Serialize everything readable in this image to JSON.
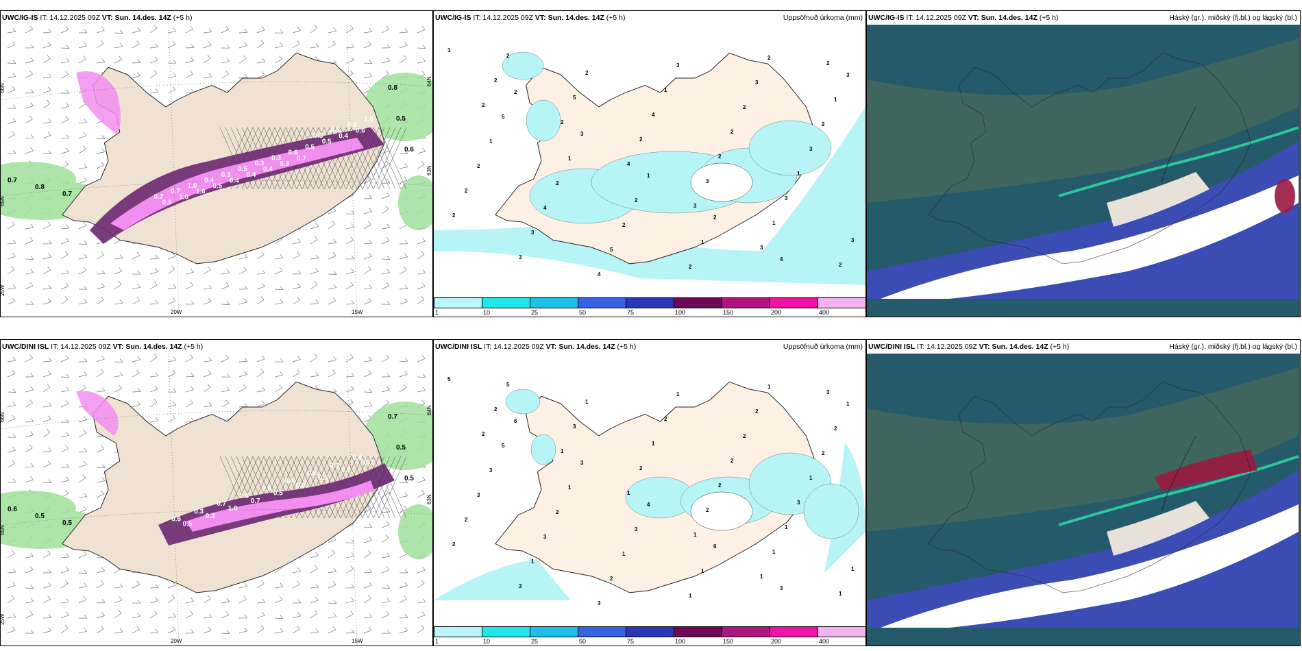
{
  "panels": [
    {
      "row": 0,
      "col": 0,
      "model": "UWC/IG-IS",
      "it_label": "IT:",
      "it_value": "14.12.2025 09Z",
      "vt_label": "VT:",
      "vt_value": "Sun. 14.des. 14Z",
      "lead": "(+5 h)",
      "right_title": "",
      "precip_labels": [
        "0.8",
        "0.5",
        "0.6",
        "0.7",
        "0.8",
        "0.7",
        "0.7",
        "0.5",
        "0.7",
        "1.0",
        "1.0",
        "1.6",
        "0.4",
        "0.5",
        "0.3",
        "0.4",
        "0.5",
        "0.4",
        "0.3",
        "0.4",
        "0.3",
        "0.3",
        "0.6",
        "0.7",
        "0.5",
        "0.3",
        "0.5",
        "0.6",
        "0.4",
        "0.3",
        "0.6",
        "1.0"
      ],
      "lat_labels": [
        "66N",
        "64N",
        "65N",
        "63N"
      ],
      "lon_labels": [
        "20W",
        "15W",
        "25W"
      ]
    },
    {
      "row": 0,
      "col": 1,
      "model": "UWC/IG-IS",
      "it_label": "IT:",
      "it_value": "14.12.2025 09Z",
      "vt_label": "VT:",
      "vt_value": "Sun. 14.des. 14Z",
      "lead": "(+5 h)",
      "right_title": "Uppsöfnuð úrkoma (mm)",
      "accum_labels": [
        "1",
        "2",
        "3",
        "1",
        "2",
        "4",
        "3",
        "5",
        "1",
        "2",
        "1",
        "2",
        "1",
        "1",
        "2",
        "2",
        "2",
        "3",
        "2",
        "2",
        "4",
        "5",
        "3",
        "2",
        "3",
        "2",
        "3",
        "4",
        "1",
        "2",
        "1",
        "2",
        "3",
        "2",
        "4",
        "2",
        "3",
        "3",
        "2",
        "5",
        "2",
        "3",
        "1",
        "2",
        "2",
        "2",
        "4",
        "3",
        "3",
        "2",
        "2"
      ]
    },
    {
      "row": 0,
      "col": 2,
      "model": "UWC/IG-IS",
      "it_label": "IT:",
      "it_value": "14.12.2025 09Z",
      "vt_label": "VT:",
      "vt_value": "Sun. 14.des. 14Z",
      "lead": "(+5 h)",
      "right_title": "Háský (gr.), miðský (fj.bl.) og lágský (bl.)"
    },
    {
      "row": 1,
      "col": 0,
      "model": "UWC/DINI ISL",
      "it_label": "IT:",
      "it_value": "14.12.2025 09Z",
      "vt_label": "VT:",
      "vt_value": "Sun. 14.des. 14Z",
      "lead": "(+5 h)",
      "right_title": "",
      "precip_labels": [
        "0.7",
        "0.5",
        "0.5",
        "0.6",
        "0.5",
        "0.5",
        "0.6",
        "0.5",
        "0.3",
        "0.3",
        "0.7",
        "1.0",
        "0.6",
        "0.7",
        "0.6",
        "0.5",
        "0.4",
        "0.6",
        "0.5",
        "0.5",
        "0.3",
        "0.5",
        "0.4",
        "0.7"
      ],
      "lat_labels": [
        "66N",
        "64N",
        "65N",
        "63N"
      ],
      "lon_labels": [
        "20W",
        "15W",
        "25W"
      ]
    },
    {
      "row": 1,
      "col": 1,
      "model": "UWC/DINI ISL",
      "it_label": "IT:",
      "it_value": "14.12.2025 09Z",
      "vt_label": "VT:",
      "vt_value": "Sun. 14.des. 14Z",
      "lead": "(+5 h)",
      "right_title": "Uppsöfnuð úrkoma (mm)",
      "accum_labels": [
        "5",
        "6",
        "3",
        "4",
        "6",
        "3",
        "1",
        "5",
        "1",
        "3",
        "1",
        "1",
        "2",
        "3",
        "2",
        "1",
        "1",
        "2",
        "2",
        "3",
        "3",
        "2",
        "1",
        "2",
        "1",
        "2",
        "1",
        "3",
        "2",
        "2",
        "3",
        "2",
        "3",
        "1",
        "1",
        "2",
        "1",
        "1",
        "5",
        "3",
        "2",
        "2",
        "1",
        "1",
        "2",
        "1",
        "1",
        "1",
        "1",
        "3",
        "2"
      ]
    },
    {
      "row": 1,
      "col": 2,
      "model": "UWC/DINI ISL",
      "it_label": "IT:",
      "it_value": "14.12.2025 09Z",
      "vt_label": "VT:",
      "vt_value": "Sun. 14.des. 14Z",
      "lead": "(+5 h)",
      "right_title": "Háský (gr.), miðský (fj.bl.) og lágský (bl.)"
    }
  ],
  "colorbar": {
    "labels": [
      "1",
      "10",
      "25",
      "50",
      "75",
      "100",
      "150",
      "200",
      "400"
    ],
    "colors": [
      "#b8f6f8",
      "#1fe7ec",
      "#1fc0e8",
      "#3563e6",
      "#2a38b8",
      "#6e0a55",
      "#b0157f",
      "#f013a8",
      "#f3b3ee"
    ]
  },
  "colors": {
    "land": "#efe2d3",
    "land_light": "#fdf0e4",
    "precip_light": "#f28ef0",
    "precip_dark": "#6a2870",
    "ocean_green": "#9fe19b",
    "accum_cyan": "#b6f4f6",
    "cloud_high": "#255a6b",
    "cloud_mid": "#3b4db5",
    "cloud_low": "#ffffff"
  }
}
